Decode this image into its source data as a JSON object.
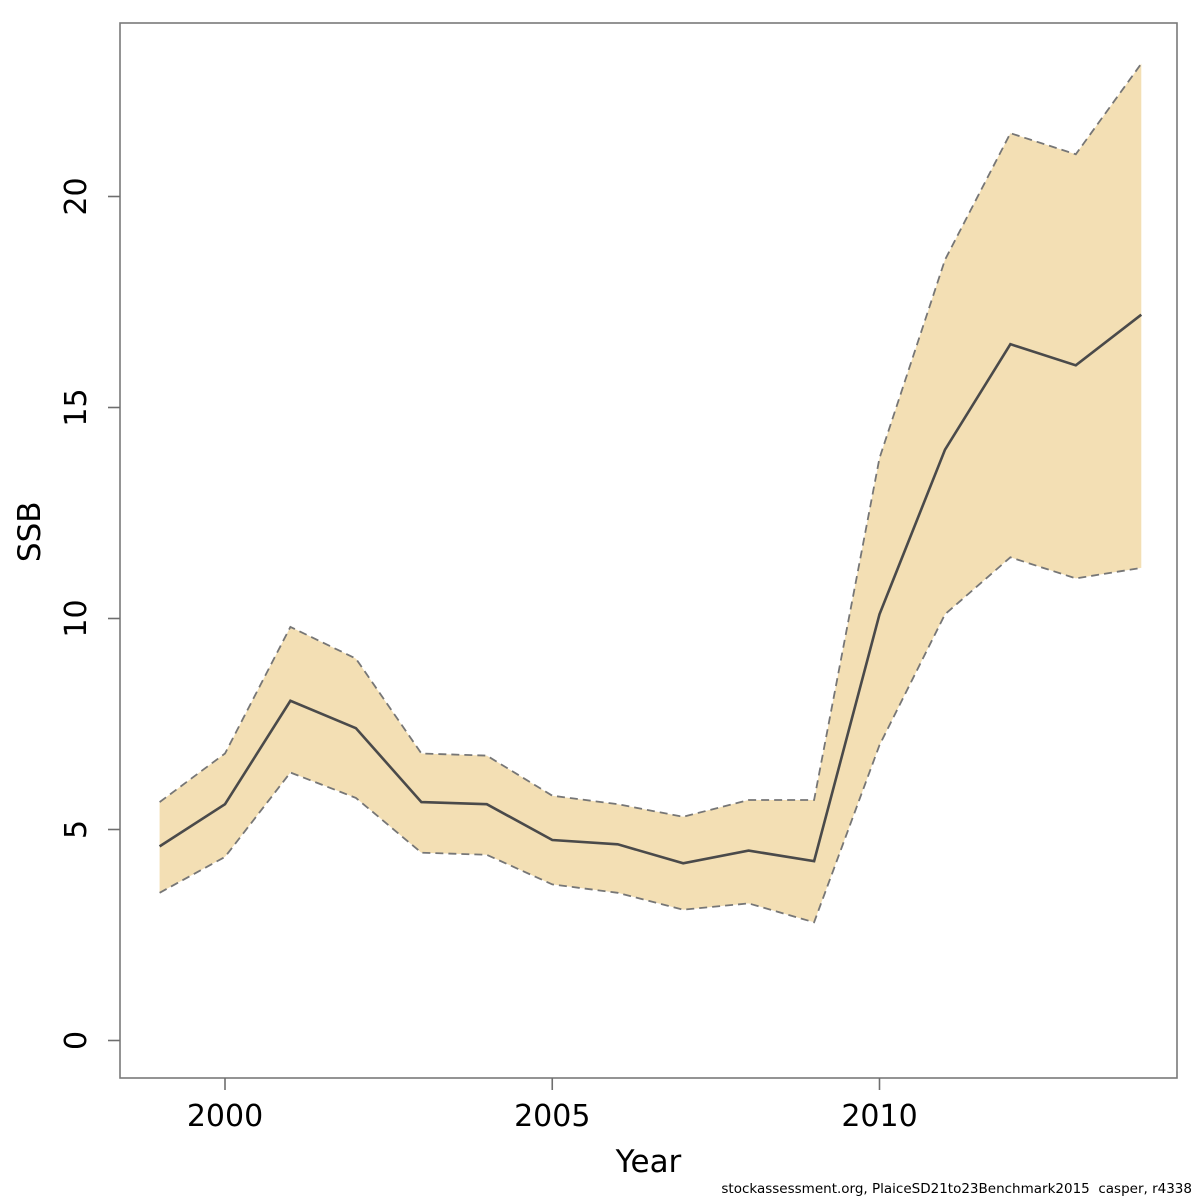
{
  "figure": {
    "footer": "stockassessment.org, PlaiceSD21to23Benchmark2015  casper, r4338"
  },
  "chart_data": {
    "type": "line",
    "title": "",
    "xlabel": "Year",
    "ylabel": "SSB",
    "x": [
      1999,
      2000,
      2001,
      2002,
      2003,
      2004,
      2005,
      2006,
      2007,
      2008,
      2009,
      2010,
      2011,
      2012,
      2013,
      2014
    ],
    "series": [
      {
        "name": "SSB estimate",
        "values": [
          4.6,
          5.6,
          8.05,
          7.4,
          5.65,
          5.6,
          4.75,
          4.65,
          4.2,
          4.5,
          4.25,
          10.1,
          14.0,
          16.5,
          16.0,
          17.2
        ]
      },
      {
        "name": "CI upper",
        "values": [
          5.65,
          6.8,
          9.8,
          9.05,
          6.8,
          6.75,
          5.8,
          5.6,
          5.3,
          5.7,
          5.7,
          13.8,
          18.5,
          21.5,
          21.0,
          23.15
        ]
      },
      {
        "name": "CI lower",
        "values": [
          3.5,
          4.35,
          6.35,
          5.75,
          4.45,
          4.4,
          3.7,
          3.5,
          3.1,
          3.25,
          2.8,
          7.0,
          10.1,
          11.45,
          10.95,
          11.2
        ]
      }
    ],
    "x_ticks": [
      2000,
      2005,
      2010
    ],
    "y_ticks": [
      0,
      5,
      10,
      15,
      20
    ],
    "xlim": [
      1998.4,
      2014.56
    ],
    "ylim": [
      -0.9,
      24.1
    ],
    "grid": false,
    "legend_position": "none",
    "colors": {
      "band_fill": "#F3DFB4",
      "ci_line": "#767676",
      "estimate_line": "#4A4A4A",
      "box_line": "#7A7A7A",
      "tick_line": "#6E6E6E",
      "text": "#000000"
    }
  }
}
